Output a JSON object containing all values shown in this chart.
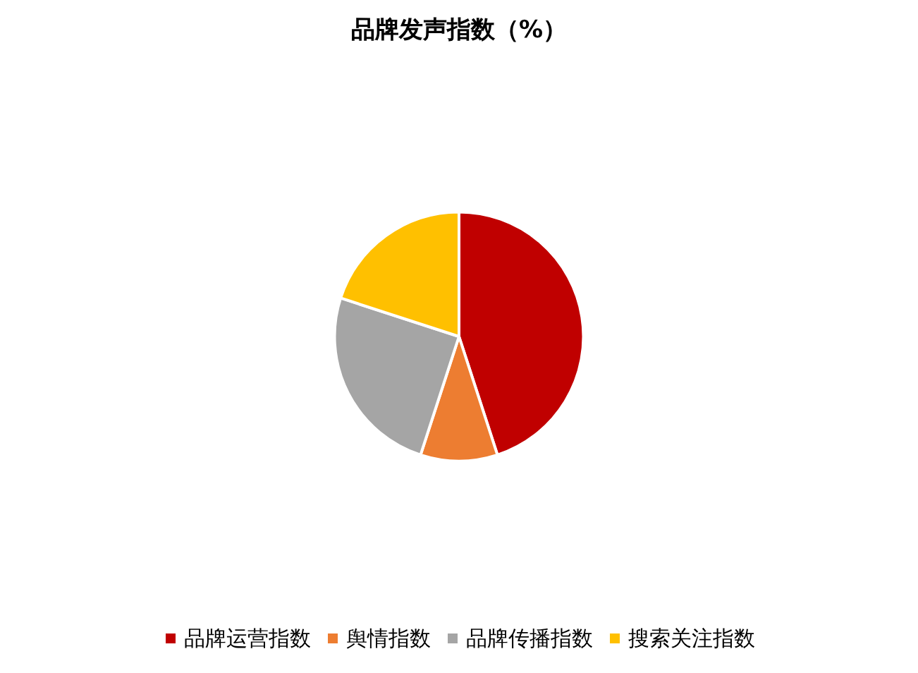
{
  "chart_data": {
    "type": "pie",
    "title": "品牌发声指数（%）",
    "categories": [
      "品牌运营指数",
      "舆情指数",
      "品牌传播指数",
      "搜索关注指数"
    ],
    "values": [
      45,
      10,
      25,
      20
    ],
    "colors": [
      "#c00000",
      "#ed7d31",
      "#a5a5a5",
      "#ffc000"
    ],
    "legend": "bottom"
  }
}
